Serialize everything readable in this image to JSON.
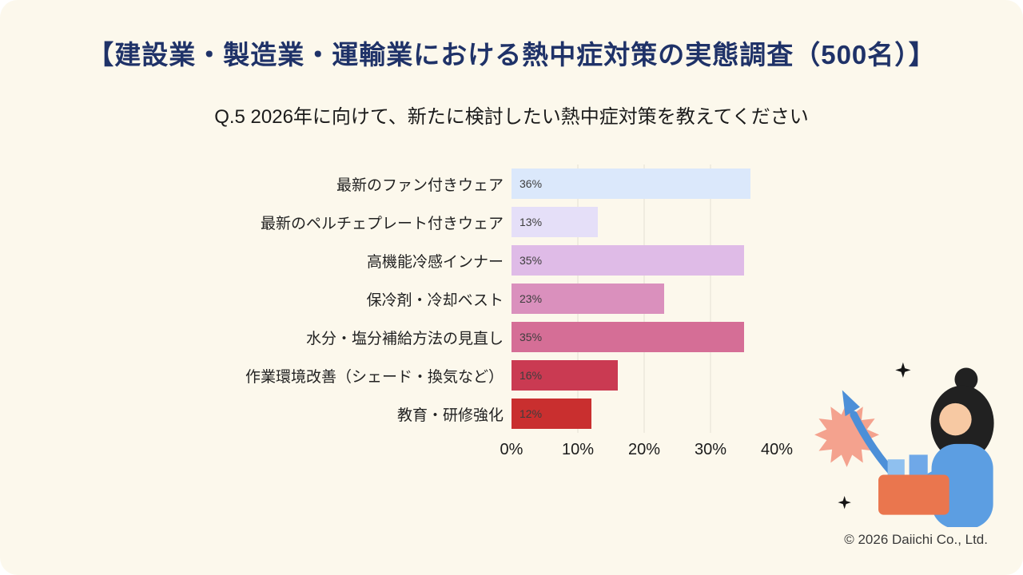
{
  "title": "【建設業・製造業・運輸業における熱中症対策の実態調査（500名）】",
  "subtitle": "Q.5 2026年に向けて、新たに検討したい熱中症対策を教えてください",
  "footer": {
    "copyright": "© 2026 Daiichi Co., Ltd."
  },
  "colors": {
    "background": "#FCF8EC",
    "title": "#1F3268",
    "gridline": "#E4E1D4",
    "illustration_arrow": "#4C8FD8",
    "illustration_starburst": "#F4A28E",
    "illustration_box": "#EA764E"
  },
  "decor": {
    "illustration": "woman-holding-box-with-rising-arrow",
    "sparkles": "four-point-stars"
  },
  "chart_data": {
    "type": "bar",
    "orientation": "horizontal",
    "title": "Q.5 2026年に向けて、新たに検討したい熱中症対策を教えてください",
    "categories": [
      "最新のファン付きウェア",
      "最新のペルチェプレート付きウェア",
      "高機能冷感インナー",
      "保冷剤・冷却ベスト",
      "水分・塩分補給方法の見直し",
      "作業環境改善（シェード・換気など）",
      "教育・研修強化"
    ],
    "values": [
      36,
      13,
      35,
      23,
      35,
      16,
      12
    ],
    "value_labels": [
      "36%",
      "13%",
      "35%",
      "23%",
      "35%",
      "16%",
      "12%"
    ],
    "bar_colors": [
      "#DBE8FB",
      "#E5DFF8",
      "#DFBBE7",
      "#DA90BD",
      "#D56E96",
      "#CA3A52",
      "#C92F2F"
    ],
    "xlabel": "",
    "ylabel": "",
    "xlim": [
      0,
      40
    ],
    "x_ticks": [
      0,
      10,
      20,
      30,
      40
    ],
    "x_tick_labels": [
      "0%",
      "10%",
      "20%",
      "30%",
      "40%"
    ],
    "gridlines": [
      10,
      20,
      30
    ],
    "grid": true,
    "legend": false
  }
}
